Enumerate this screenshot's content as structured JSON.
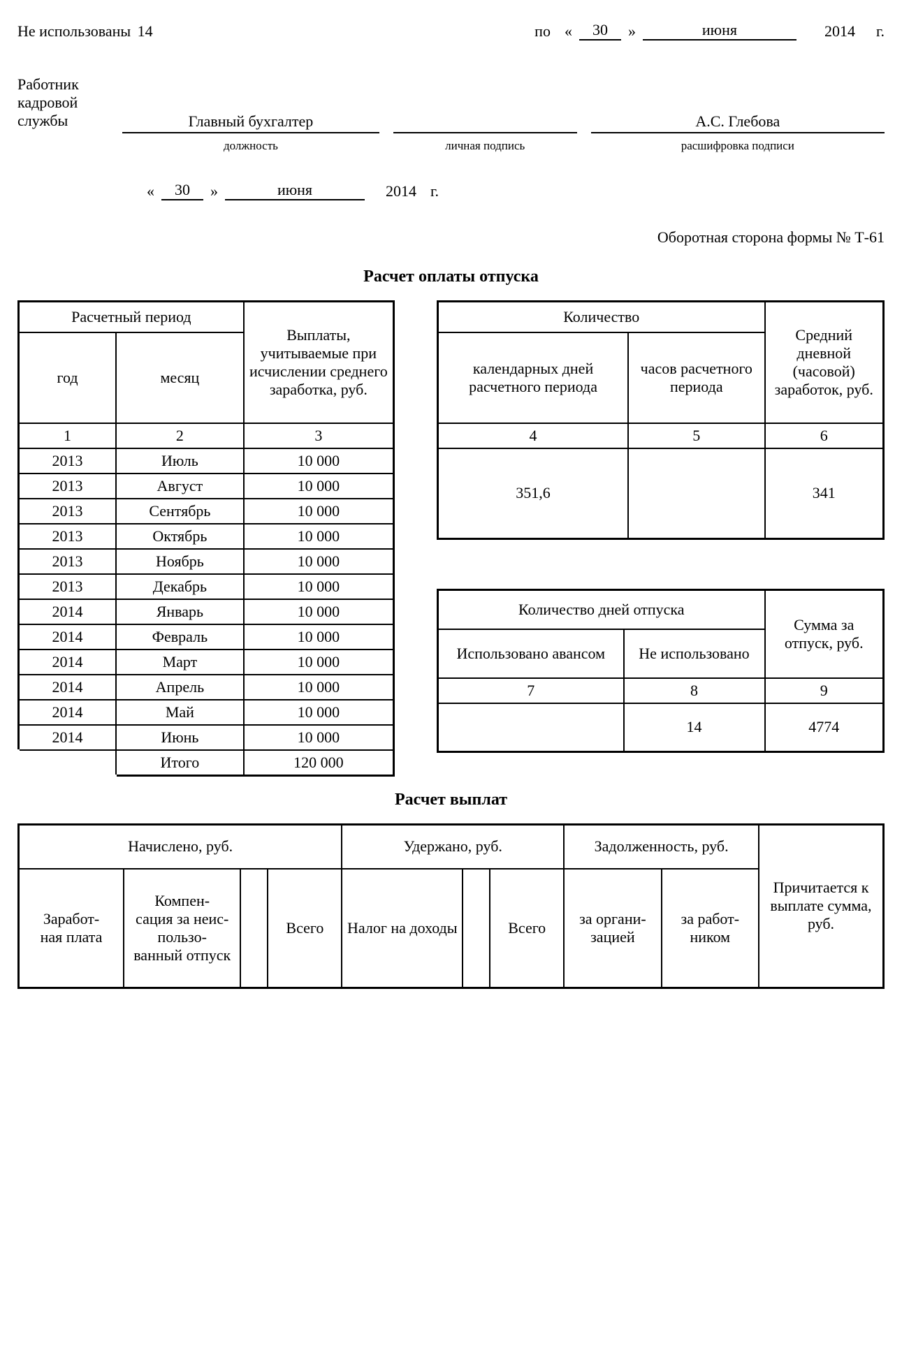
{
  "top": {
    "unused_label": "Не использованы",
    "unused_days": "14",
    "po": "по",
    "q_open": "«",
    "q_close": "»",
    "day": "30",
    "month": "июня",
    "year": "2014",
    "g": "г."
  },
  "hr": {
    "worker_label": "Работник кадровой службы",
    "position_value": "Главный бухгалтер",
    "position_caption": "должность",
    "sign_caption": "личная подпись",
    "decode_value": "А.С. Глебова",
    "decode_caption": "расшифровка подписи",
    "date_day": "30",
    "date_month": "июня",
    "date_year": "2014",
    "date_g": "г."
  },
  "reverse_side": "Оборотная сторона формы № Т-61",
  "calc_title": "Расчет оплаты отпуска",
  "t1": {
    "h_period": "Расчетный период",
    "h_year": "год",
    "h_month": "месяц",
    "h_pay": "Выплаты, учитываемые при исчислении среднего заработка, руб.",
    "n1": "1",
    "n2": "2",
    "n3": "3",
    "rows": [
      {
        "y": "2013",
        "m": "Июль",
        "v": "10 000"
      },
      {
        "y": "2013",
        "m": "Август",
        "v": "10 000"
      },
      {
        "y": "2013",
        "m": "Сентябрь",
        "v": "10 000"
      },
      {
        "y": "2013",
        "m": "Октябрь",
        "v": "10 000"
      },
      {
        "y": "2013",
        "m": "Ноябрь",
        "v": "10 000"
      },
      {
        "y": "2013",
        "m": "Декабрь",
        "v": "10 000"
      },
      {
        "y": "2014",
        "m": "Январь",
        "v": "10 000"
      },
      {
        "y": "2014",
        "m": "Февраль",
        "v": "10 000"
      },
      {
        "y": "2014",
        "m": "Март",
        "v": "10 000"
      },
      {
        "y": "2014",
        "m": "Апрель",
        "v": "10 000"
      },
      {
        "y": "2014",
        "m": "Май",
        "v": "10 000"
      },
      {
        "y": "2014",
        "m": "Июнь",
        "v": "10 000"
      }
    ],
    "total_label": "Итого",
    "total_value": "120 000"
  },
  "t2": {
    "h_qty": "Количество",
    "h_cal_days": "календарных дней расчетного периода",
    "h_hours": "часов расчетного периода",
    "h_avg": "Средний дневной (часовой) заработок, руб.",
    "n4": "4",
    "n5": "5",
    "n6": "6",
    "v4": "351,6",
    "v5": "",
    "v6": "341"
  },
  "t3": {
    "h_days": "Количество дней отпуска",
    "h_used": "Использовано авансом",
    "h_unused": "Не использовано",
    "h_sum": "Сумма за отпуск, руб.",
    "n7": "7",
    "n8": "8",
    "n9": "9",
    "v7": "",
    "v8": "14",
    "v9": "4774"
  },
  "pay_title": "Расчет выплат",
  "t4": {
    "h_accrued": "Начислено, руб.",
    "h_withheld": "Удержано, руб.",
    "h_debt": "Задолженность, руб.",
    "h_due": "Причитается к выплате сумма, руб.",
    "h_salary": "Заработ-\nная плата",
    "h_comp": "Компен-\nсация за неис-\nпользо-\nванный отпуск",
    "h_total1": "Всего",
    "h_tax": "Налог на доходы",
    "h_total2": "Всего",
    "h_org": "за органи-\nзацией",
    "h_emp": "за работ-\nником"
  }
}
